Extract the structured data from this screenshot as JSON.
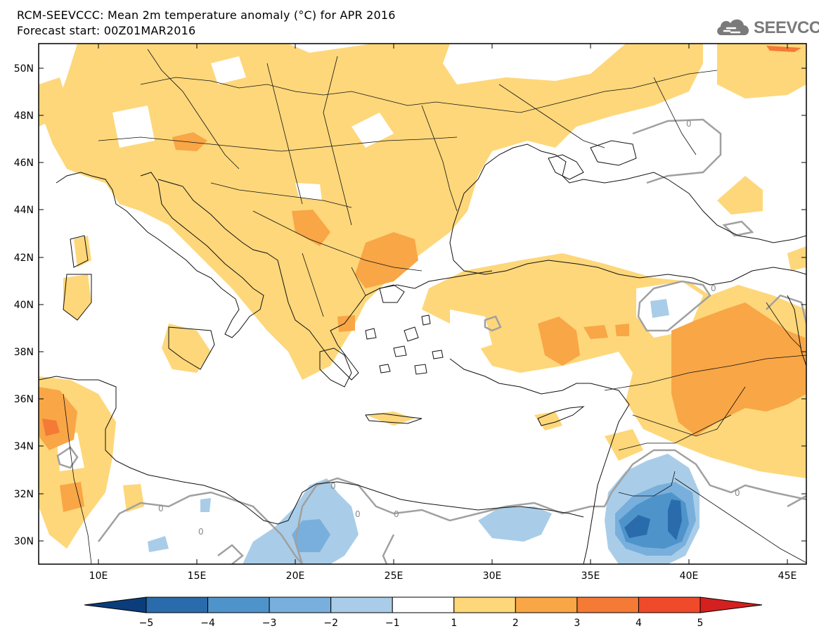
{
  "header": {
    "title": "RCM-SEEVCCC: Mean 2m temperature anomaly (°C) for APR 2016",
    "subtitle": "Forecast start: 00Z01MAR2016"
  },
  "logo": {
    "text": "SEEVCCC",
    "icon": "cloud-logo-icon"
  },
  "map": {
    "lat_ticks": [
      "50N",
      "48N",
      "46N",
      "44N",
      "42N",
      "40N",
      "38N",
      "36N",
      "34N",
      "32N",
      "30N"
    ],
    "lon_ticks": [
      "10E",
      "15E",
      "20E",
      "25E",
      "30E",
      "35E",
      "40E",
      "45E"
    ],
    "lat_range": [
      29,
      51
    ],
    "lon_range": [
      7,
      46
    ],
    "contour_label": "0",
    "contour_label_count": 8
  },
  "colorbar": {
    "ticks": [
      "−5",
      "−4",
      "−3",
      "−2",
      "−1",
      "1",
      "2",
      "3",
      "4",
      "5"
    ],
    "colors": [
      "#0b3d7a",
      "#2a6cab",
      "#4f93cb",
      "#78afdc",
      "#a9cde8",
      "#ffffff",
      "#fdd77a",
      "#f9a646",
      "#f47a36",
      "#ef4a2a",
      "#d4201f"
    ]
  },
  "palette": {
    "warm1": "#fdd77a",
    "warm2": "#f9a646",
    "warm3": "#f47a36",
    "warm4": "#ef4a2a",
    "cold1": "#a9cde8",
    "cold2": "#78afdc",
    "cold3": "#4f93cb",
    "cold4": "#2a6cab",
    "contour": "#a0a0a0",
    "coast": "#111111"
  }
}
